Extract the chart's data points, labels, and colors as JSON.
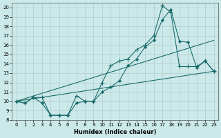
{
  "title": "",
  "xlabel": "Humidex (Indice chaleur)",
  "ylabel": "",
  "bg_color": "#cce9e9",
  "grid_color": "#b0cccc",
  "line_color": "#1a6b6b",
  "xlim": [
    -0.5,
    23.5
  ],
  "ylim": [
    8,
    20.5
  ],
  "yticks": [
    8,
    9,
    10,
    11,
    12,
    13,
    14,
    15,
    16,
    17,
    18,
    19,
    20
  ],
  "xticks": [
    0,
    1,
    2,
    3,
    4,
    5,
    6,
    7,
    8,
    9,
    10,
    11,
    12,
    13,
    14,
    15,
    16,
    17,
    18,
    19,
    20,
    21,
    22,
    23
  ],
  "series1_x": [
    0,
    1,
    2,
    3,
    4,
    5,
    6,
    7,
    8,
    9,
    10,
    11,
    12,
    13,
    14,
    15,
    16,
    17,
    18,
    19,
    20,
    21,
    22,
    23
  ],
  "series1_y": [
    10,
    9.8,
    10.4,
    9.8,
    8.5,
    8.5,
    8.5,
    9.8,
    10.0,
    10.0,
    11.0,
    11.5,
    12.2,
    13.8,
    14.5,
    15.8,
    16.5,
    18.7,
    19.8,
    16.4,
    16.3,
    13.6,
    14.3,
    13.2
  ],
  "series2_x": [
    0,
    1,
    2,
    3,
    4,
    5,
    6,
    7,
    8,
    9,
    10,
    11,
    12,
    13,
    14,
    15,
    16,
    17,
    18,
    19,
    20,
    21,
    22,
    23
  ],
  "series2_y": [
    10,
    9.8,
    10.4,
    10.4,
    8.5,
    8.5,
    8.5,
    10.6,
    10.0,
    10.0,
    12.0,
    13.8,
    14.3,
    14.5,
    15.5,
    16.0,
    17.0,
    20.2,
    19.5,
    13.7,
    13.7,
    13.7,
    14.3,
    13.2
  ],
  "series3_x": [
    0,
    23
  ],
  "series3_y": [
    10,
    13.2
  ],
  "series4_x": [
    0,
    23
  ],
  "series4_y": [
    10.0,
    16.5
  ]
}
